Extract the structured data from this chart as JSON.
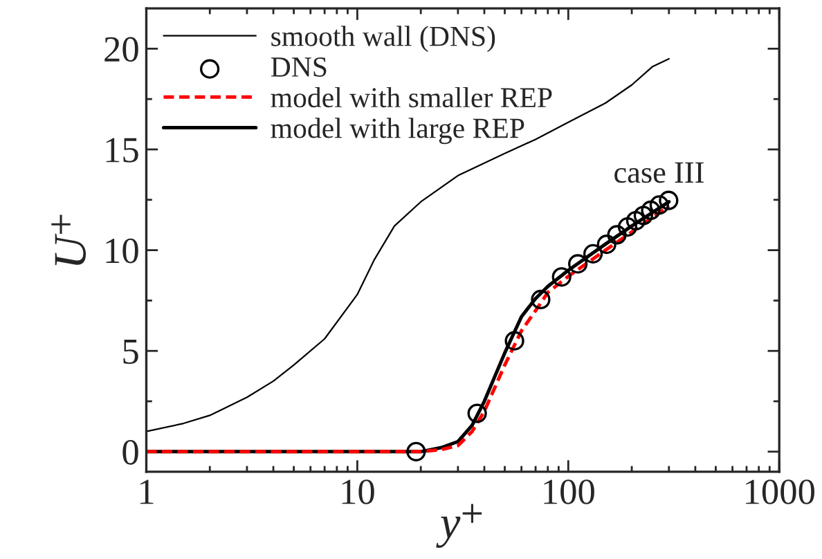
{
  "chart_data": {
    "type": "line",
    "xlabel": "y$^{+}$",
    "ylabel": "U$^{+}$",
    "log": "x",
    "xlim": [
      1,
      1000
    ],
    "xticks": [
      1,
      10,
      100,
      1000
    ],
    "ylim": [
      -1,
      22
    ],
    "yticks": [
      0,
      5,
      10,
      15,
      20
    ],
    "grid": false,
    "legend": "top left",
    "annotations": [
      "case III"
    ],
    "series": [
      {
        "name": "smooth wall (DNS)",
        "color": "#000000",
        "line_style": "solid",
        "marker": "none",
        "x": [
          1,
          1.5,
          2,
          3,
          4,
          5,
          7,
          10,
          12,
          15,
          20,
          30,
          50,
          70,
          100,
          150,
          200,
          250,
          300
        ],
        "values": [
          1.0,
          1.4,
          1.8,
          2.7,
          3.5,
          4.3,
          5.6,
          7.8,
          9.5,
          11.2,
          12.4,
          13.7,
          14.8,
          15.5,
          16.35,
          17.3,
          18.2,
          19.1,
          19.5
        ]
      },
      {
        "name": "DNS",
        "type": "scatter",
        "color": "#000000",
        "marker": "circle",
        "x": [
          19,
          37,
          55.6,
          74,
          93,
          111,
          131,
          152,
          170,
          191,
          209,
          227,
          246,
          270,
          299
        ],
        "values": [
          0,
          1.9,
          5.5,
          7.55,
          8.67,
          9.32,
          9.82,
          10.29,
          10.76,
          11.15,
          11.46,
          11.72,
          11.98,
          12.24,
          12.47
        ]
      },
      {
        "name": "model with smaller REP",
        "color": "#ff0000",
        "line_style": "dashed",
        "marker": "none",
        "x": [
          1,
          5,
          10,
          20,
          25,
          30,
          35,
          40,
          50,
          60,
          70,
          80,
          100,
          150,
          200,
          300
        ],
        "values": [
          0,
          0,
          0,
          0,
          0.1,
          0.3,
          1.0,
          2.0,
          4.3,
          6.0,
          7.0,
          7.9,
          8.7,
          10.0,
          10.9,
          12.2
        ]
      },
      {
        "name": "model with large REP",
        "color": "#000000",
        "line_style": "solid",
        "marker": "none",
        "x": [
          1,
          5,
          10,
          20,
          25,
          30,
          35,
          40,
          50,
          60,
          70,
          80,
          100,
          150,
          200,
          300
        ],
        "values": [
          0,
          0,
          0,
          0,
          0.2,
          0.5,
          1.3,
          2.5,
          4.9,
          6.7,
          7.6,
          8.2,
          9.0,
          10.3,
          11.2,
          12.4
        ]
      }
    ]
  }
}
